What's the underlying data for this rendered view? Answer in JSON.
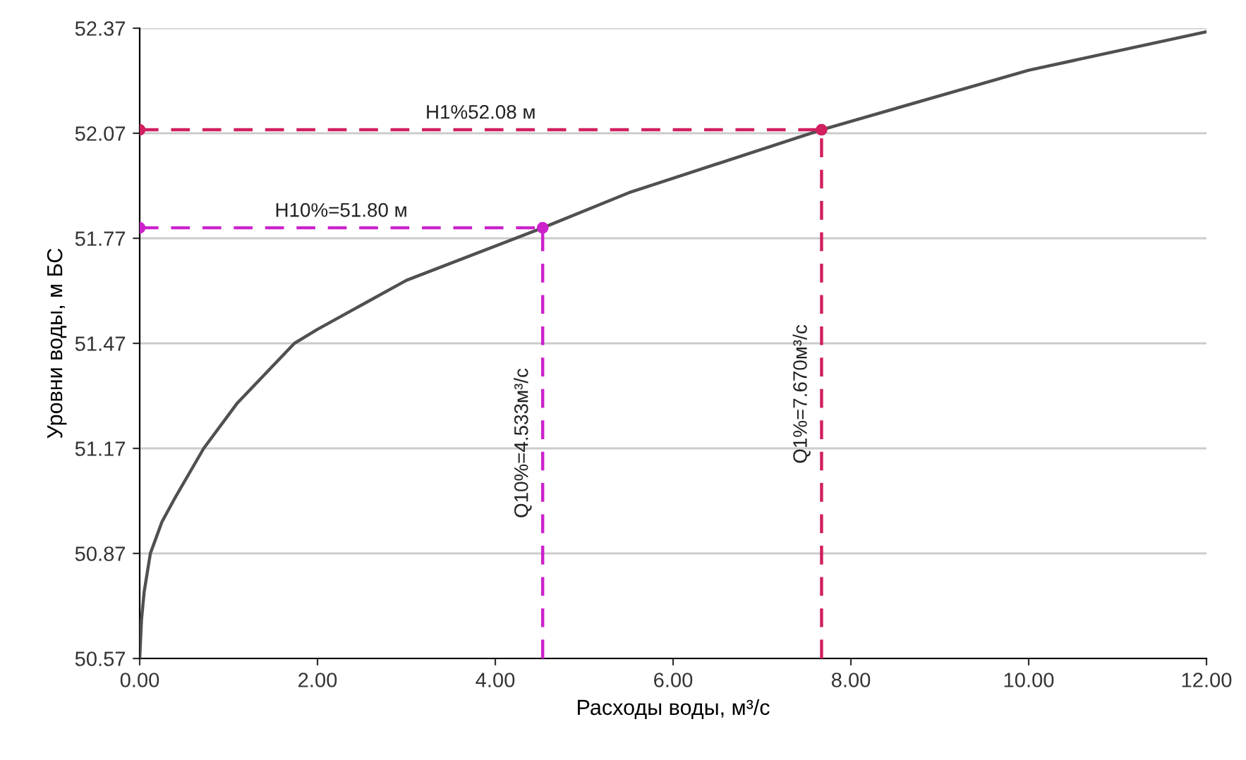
{
  "chart_data": {
    "type": "line",
    "xlabel": "Расходы воды, м³/с",
    "ylabel": "Уровни воды, м БС",
    "xlim": [
      0,
      12
    ],
    "ylim": [
      50.57,
      52.37
    ],
    "xticks": [
      {
        "value": 0,
        "label": "0.00"
      },
      {
        "value": 2,
        "label": "2.00"
      },
      {
        "value": 4,
        "label": "4.00"
      },
      {
        "value": 6,
        "label": "6.00"
      },
      {
        "value": 8,
        "label": "8.00"
      },
      {
        "value": 10,
        "label": "10.00"
      },
      {
        "value": 12,
        "label": "12.00"
      }
    ],
    "yticks": [
      50.57,
      50.87,
      51.17,
      51.47,
      51.77,
      52.07,
      52.37
    ],
    "grid": "y",
    "series": [
      {
        "color": "#505050",
        "marker": "none",
        "line_style": "solid",
        "x": [
          0,
          0.02,
          0.05,
          0.12,
          0.25,
          0.4,
          0.72,
          1.1,
          1.74,
          2.0,
          3.0,
          4.533,
          5.5,
          7.67,
          10.0,
          12.0
        ],
        "values": [
          50.57,
          50.68,
          50.76,
          50.87,
          50.96,
          51.03,
          51.17,
          51.3,
          51.47,
          51.51,
          51.65,
          51.8,
          51.9,
          52.08,
          52.25,
          52.36
        ]
      },
      {
        "name": "Н1%52.08 м",
        "color": "#d02060",
        "marker": "circle",
        "line_style": "dashed",
        "x": [
          0,
          7.67
        ],
        "values": [
          52.08,
          52.08
        ]
      },
      {
        "name": "Н10%=51.80 м",
        "color": "#cc22cc",
        "marker": "circle",
        "line_style": "dashed",
        "x": [
          0,
          4.533
        ],
        "values": [
          51.8,
          51.8
        ]
      },
      {
        "name": "Q10%=4.533м³/с",
        "color": "#cc22cc",
        "marker": "none",
        "line_style": "dashed",
        "x": [
          4.533,
          4.533
        ],
        "values": [
          50.57,
          51.8
        ]
      },
      {
        "name": "Q1%=7.670м³/с",
        "color": "#d02060",
        "marker": "none",
        "line_style": "dashed",
        "x": [
          7.67,
          7.67
        ],
        "values": [
          50.57,
          52.08
        ]
      }
    ]
  }
}
